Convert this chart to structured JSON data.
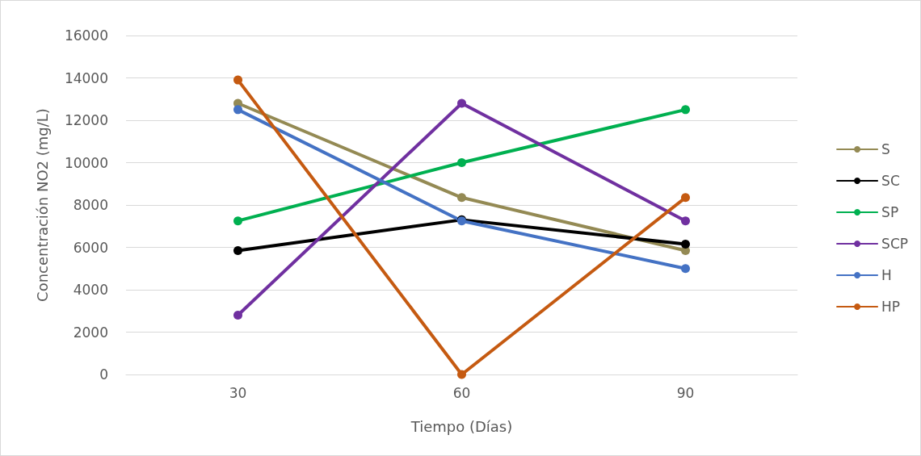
{
  "chart_data": {
    "type": "line",
    "xlabel": "Tiempo (Días)",
    "ylabel": "Concentración NO2 (mg/L)",
    "categories": [
      "30",
      "60",
      "90"
    ],
    "series": [
      {
        "name": "S",
        "color": "#948a54",
        "values": [
          12800,
          8350,
          5850
        ]
      },
      {
        "name": "SC",
        "color": "#000000",
        "values": [
          5850,
          7300,
          6150
        ]
      },
      {
        "name": "SP",
        "color": "#00b050",
        "values": [
          7250,
          10000,
          12500
        ]
      },
      {
        "name": "SCP",
        "color": "#7030a0",
        "values": [
          2800,
          12800,
          7250
        ]
      },
      {
        "name": "H",
        "color": "#4472c4",
        "values": [
          12500,
          7250,
          5000
        ]
      },
      {
        "name": "HP",
        "color": "#c55a11",
        "values": [
          13900,
          0,
          8350
        ]
      }
    ],
    "ylim": [
      0,
      16000
    ],
    "yticks": [
      0,
      2000,
      4000,
      6000,
      8000,
      10000,
      12000,
      14000,
      16000
    ],
    "grid": "y",
    "legend": "right",
    "marker": "circle",
    "line_style": "solid"
  }
}
